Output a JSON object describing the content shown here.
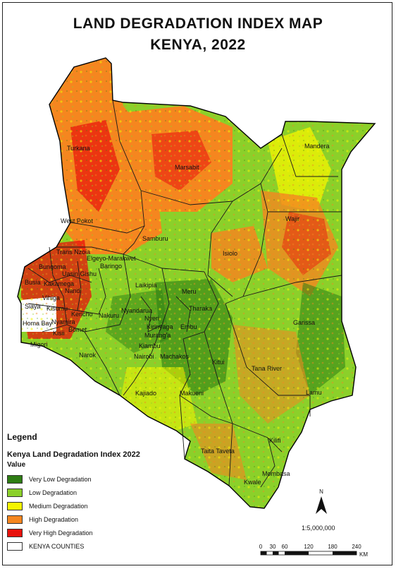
{
  "title_line1": "LAND DEGRADATION INDEX MAP",
  "title_line2": "KENYA, 2022",
  "legend": {
    "heading": "Legend",
    "layer": "Kenya Land Degradation Index 2022",
    "value_label": "Value",
    "items": [
      {
        "label": "Very Low Degradation",
        "color": "#2e7d14"
      },
      {
        "label": "Low Degradation",
        "color": "#8bd02a"
      },
      {
        "label": "Medium Degradation",
        "color": "#f5f500"
      },
      {
        "label": "High Degradation",
        "color": "#f5861f"
      },
      {
        "label": "Very High Degradation",
        "color": "#e8120c"
      },
      {
        "label": "KENYA COUNTIES",
        "color": "#ffffff"
      }
    ]
  },
  "scale": {
    "ratio": "1:5,000,000",
    "ticks": [
      "0",
      "30",
      "60",
      "120",
      "180",
      "240"
    ],
    "unit": "KM"
  },
  "north_label": "N",
  "counties": [
    "Turkana",
    "Marsabit",
    "Mandera",
    "Wajir",
    "West Pokot",
    "Samburu",
    "Isiolo",
    "Trans Nzoia",
    "Elgeyo-Marakwet",
    "Bungoma",
    "Uasin Gishu",
    "Baringo",
    "Busia",
    "Kakamega",
    "Nandi",
    "Vihiga",
    "Laikipia",
    "Meru",
    "Siaya",
    "Kisumu",
    "Kericho",
    "Nyandarua",
    "Nyeri",
    "Tharaka",
    "Homa Bay",
    "Nyamira",
    "Nakuru",
    "Kirinyaga",
    "Embu",
    "Kisii",
    "Bomet",
    "Murang'a",
    "Garissa",
    "Migori",
    "Kiambu",
    "Narok",
    "Nairobi",
    "Machakos",
    "Kitui",
    "Tana River",
    "Kajiado",
    "Makueni",
    "Lamu",
    "Taita Taveta",
    "Kilifi",
    "Mombasa",
    "Kwale"
  ]
}
